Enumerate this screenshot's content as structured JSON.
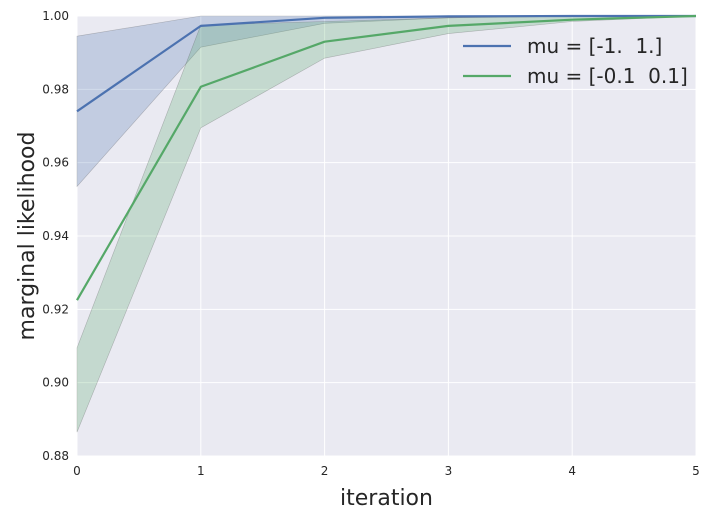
{
  "chart_data": {
    "type": "line",
    "xlabel": "iteration",
    "ylabel": "marginal likelihood",
    "x": [
      0,
      1,
      2,
      3,
      4,
      5
    ],
    "xlim": [
      0,
      5
    ],
    "ylim": [
      0.88,
      1.0
    ],
    "xticks": [
      "0",
      "1",
      "2",
      "3",
      "4",
      "5"
    ],
    "yticks": [
      "0.88",
      "0.90",
      "0.92",
      "0.94",
      "0.96",
      "0.98",
      "1.00"
    ],
    "grid": true,
    "legend_position": "top-right",
    "series": [
      {
        "name": "mu = [-1.  1.]",
        "color": "#4c72b0",
        "values": [
          0.974,
          0.9973,
          0.9995,
          0.9999,
          1.0,
          1.0
        ],
        "band_upper": [
          0.9945,
          1.0,
          1.0,
          1.0,
          1.0,
          1.0
        ],
        "band_lower": [
          0.9535,
          0.9915,
          0.998,
          0.9995,
          0.9999,
          1.0
        ]
      },
      {
        "name": "mu = [-0.1  0.1]",
        "color": "#55a868",
        "values": [
          0.9225,
          0.9807,
          0.993,
          0.9973,
          0.999,
          1.0
        ],
        "band_upper": [
          0.9095,
          0.9975,
          0.9985,
          0.9995,
          0.9999,
          1.0
        ],
        "band_lower": [
          0.8865,
          0.9695,
          0.9885,
          0.9952,
          0.9985,
          1.0
        ]
      }
    ]
  }
}
